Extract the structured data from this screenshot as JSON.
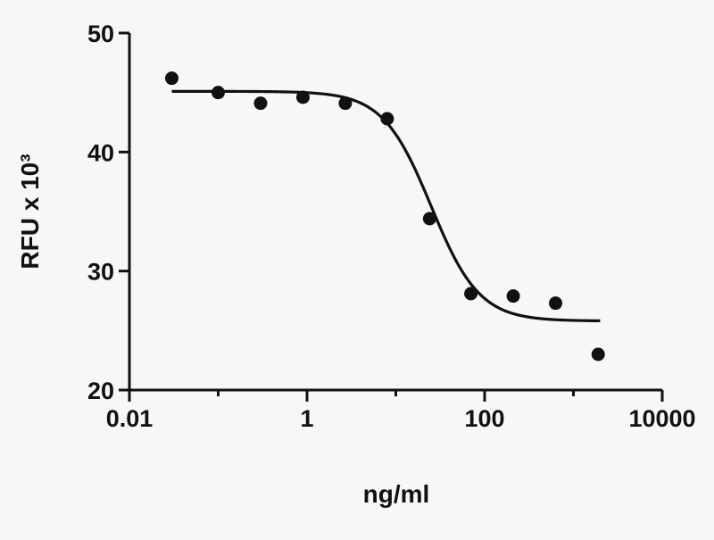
{
  "chart_data": {
    "type": "scatter",
    "title": "",
    "xlabel": "ng/ml",
    "ylabel": "RFU x 10³",
    "xscale": "log",
    "xlim": [
      0.01,
      10000
    ],
    "ylim": [
      20,
      50
    ],
    "xticks": [
      {
        "value": 0.01,
        "label": "0.01"
      },
      {
        "value": 1,
        "label": "1"
      },
      {
        "value": 100,
        "label": "100"
      },
      {
        "value": 10000,
        "label": "10000"
      }
    ],
    "yticks": [
      {
        "value": 20,
        "label": "20"
      },
      {
        "value": 30,
        "label": "30"
      },
      {
        "value": 40,
        "label": "40"
      },
      {
        "value": 50,
        "label": "50"
      }
    ],
    "grid": false,
    "legend": "none",
    "series": [
      {
        "kind": "points",
        "x": [
          0.03,
          0.1,
          0.3,
          0.9,
          2.7,
          8,
          24,
          70,
          210,
          630,
          1900
        ],
        "y": [
          46.2,
          45.0,
          44.1,
          44.6,
          44.1,
          42.8,
          34.4,
          28.1,
          27.9,
          27.3,
          23.0
        ]
      },
      {
        "kind": "fit",
        "model": "four-parameter logistic",
        "top": 45.1,
        "bottom": 25.8,
        "ec50": 25,
        "hill": 1.6,
        "xrange": [
          0.03,
          2000
        ]
      }
    ],
    "colors": {
      "ink": "#111111",
      "background": "#f7f7f7"
    }
  }
}
